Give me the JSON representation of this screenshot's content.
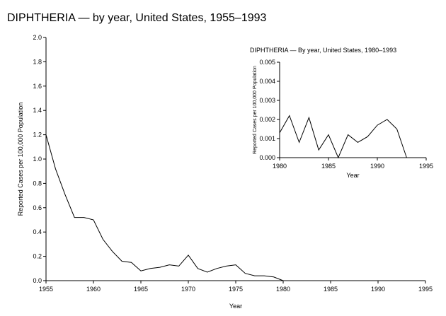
{
  "page": {
    "title": "DIPHTHERIA — by year, United States, 1955–1993"
  },
  "chart_data": [
    {
      "type": "line",
      "title": "DIPHTHERIA — by year, United States, 1955–1993",
      "xlabel": "Year",
      "ylabel": "Reported Cases per 100,000 Population",
      "xlim": [
        1955,
        1995
      ],
      "ylim": [
        0,
        2.0
      ],
      "xticks": [
        "1955",
        "1960",
        "1965",
        "1970",
        "1975",
        "1980",
        "1985",
        "1990",
        "1995"
      ],
      "yticks": [
        "0.0",
        "0.2",
        "0.4",
        "0.6",
        "0.8",
        "1.0",
        "1.2",
        "1.4",
        "1.6",
        "1.8",
        "2.0"
      ],
      "grid": false,
      "series": [
        {
          "x": [
            1955,
            1956,
            1957,
            1958,
            1959,
            1960,
            1961,
            1962,
            1963,
            1964,
            1965,
            1966,
            1967,
            1968,
            1969,
            1970,
            1971,
            1972,
            1973,
            1974,
            1975,
            1976,
            1977,
            1978,
            1979,
            1980
          ],
          "y": [
            1.2,
            0.92,
            0.71,
            0.52,
            0.52,
            0.5,
            0.34,
            0.24,
            0.16,
            0.15,
            0.08,
            0.1,
            0.11,
            0.13,
            0.12,
            0.21,
            0.1,
            0.07,
            0.1,
            0.12,
            0.13,
            0.06,
            0.04,
            0.04,
            0.03,
            0.0
          ]
        }
      ]
    },
    {
      "type": "line",
      "title": "DIPHTHERIA — By year, United States, 1980–1993",
      "xlabel": "Year",
      "ylabel": "Reported Cases per 100,000 Population",
      "xlim": [
        1980,
        1995
      ],
      "ylim": [
        0,
        0.005
      ],
      "xticks": [
        "1980",
        "1985",
        "1990",
        "1995"
      ],
      "yticks": [
        "0.000",
        "0.001",
        "0.002",
        "0.003",
        "0.004",
        "0.005"
      ],
      "grid": false,
      "series": [
        {
          "x": [
            1980,
            1981,
            1982,
            1983,
            1984,
            1985,
            1986,
            1987,
            1988,
            1989,
            1990,
            1991,
            1992,
            1993
          ],
          "y": [
            0.0013,
            0.0022,
            0.0008,
            0.0021,
            0.0004,
            0.0012,
            0.0,
            0.0012,
            0.0008,
            0.0011,
            0.0017,
            0.002,
            0.0015,
            0.0
          ]
        }
      ]
    }
  ]
}
